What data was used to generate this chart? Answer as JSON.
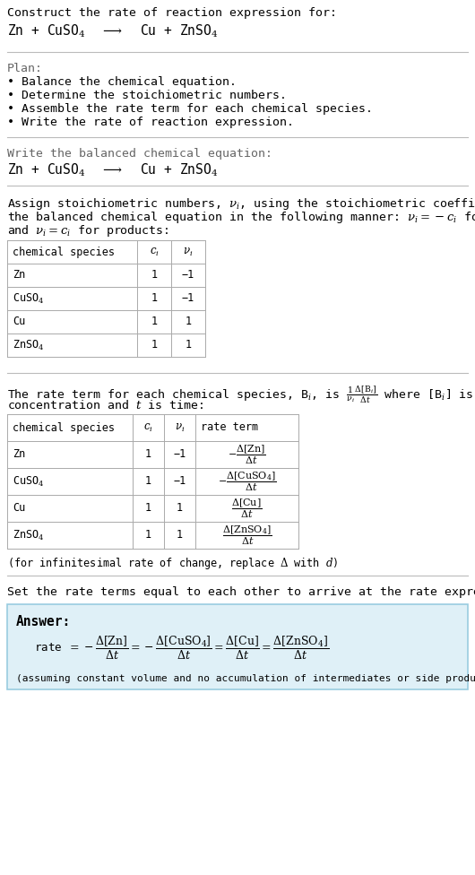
{
  "bg_color": "#ffffff",
  "text_color": "#000000",
  "gray_text": "#666666",
  "answer_bg": "#dff0f7",
  "answer_border": "#99cce0",
  "sep_color": "#bbbbbb",
  "title_line1": "Construct the rate of reaction expression for:",
  "plan_label": "Plan:",
  "plan_items": [
    "• Balance the chemical equation.",
    "• Determine the stoichiometric numbers.",
    "• Assemble the rate term for each chemical species.",
    "• Write the rate of reaction expression."
  ],
  "balanced_label": "Write the balanced chemical equation:",
  "table1_headers": [
    "chemical species",
    "c_i",
    "v_i"
  ],
  "table1_rows": [
    [
      "Zn",
      "1",
      "−1"
    ],
    [
      "CuSO_4",
      "1",
      "−1"
    ],
    [
      "Cu",
      "1",
      "1"
    ],
    [
      "ZnSO_4",
      "1",
      "1"
    ]
  ],
  "table2_headers": [
    "chemical species",
    "c_i",
    "v_i",
    "rate term"
  ],
  "table2_rows": [
    [
      "Zn",
      "1",
      "−1",
      "rt_zn"
    ],
    [
      "CuSO_4",
      "1",
      "−1",
      "rt_cuso4"
    ],
    [
      "Cu",
      "1",
      "1",
      "rt_cu"
    ],
    [
      "ZnSO_4",
      "1",
      "1",
      "rt_znso4"
    ]
  ],
  "set_equal_text": "Set the rate terms equal to each other to arrive at the rate expression:",
  "answer_label": "Answer:",
  "answer_note": "(assuming constant volume and no accumulation of intermediates or side products)"
}
